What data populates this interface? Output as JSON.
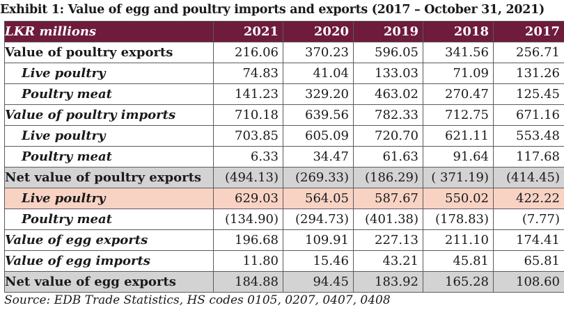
{
  "title": "Exhibit 1: Value of egg and poultry imports and exports (2017 – October 31, 2021)",
  "header": [
    "LKR millions",
    "2021",
    "2020",
    "2019",
    "2018",
    "2017"
  ],
  "rows": [
    {
      "label": "Value of poultry exports",
      "values": [
        "216.06",
        "370.23",
        "596.05",
        "341.56",
        "256.71"
      ]
    },
    {
      "label": "Live poultry",
      "values": [
        "74.83",
        "41.04",
        "133.03",
        "71.09",
        "131.26"
      ]
    },
    {
      "label": "Poultry meat",
      "values": [
        "141.23",
        "329.20",
        "463.02",
        "270.47",
        "125.45"
      ]
    },
    {
      "label": "Value of poultry imports",
      "values": [
        "710.18",
        "639.56",
        "782.33",
        "712.75",
        "671.16"
      ]
    },
    {
      "label": "Live poultry",
      "values": [
        "703.85",
        "605.09",
        "720.70",
        "621.11",
        "553.48"
      ]
    },
    {
      "label": "Poultry meat",
      "values": [
        "6.33",
        "34.47",
        "61.63",
        "91.64",
        "117.68"
      ]
    },
    {
      "label": "Net value of poultry exports",
      "values": [
        "(494.13)",
        "(269.33)",
        "(186.29)",
        "( 371.19)",
        "(414.45)"
      ]
    },
    {
      "label": "Live poultry",
      "values": [
        "629.03",
        "564.05",
        "587.67",
        "550.02",
        "422.22"
      ]
    },
    {
      "label": "Poultry meat",
      "values": [
        "(134.90)",
        "(294.73)",
        "(401.38)",
        "(178.83)",
        "(7.77)"
      ]
    },
    {
      "label": "Value of egg exports",
      "values": [
        "196.68",
        "109.91",
        "227.13",
        "211.10",
        "174.41"
      ]
    },
    {
      "label": "Value of egg imports",
      "values": [
        "11.80",
        "15.46",
        "43.21",
        "45.81",
        "65.81"
      ]
    },
    {
      "label": "Net value of egg exports",
      "values": [
        "184.88",
        "94.45",
        "183.92",
        "165.28",
        "108.60"
      ]
    }
  ],
  "source": "Source: EDB Trade Statistics, HS codes 0105, 0207, 0407, 0408",
  "colors": {
    "header_bg": "#6e1b3c",
    "highlight_gray": "#d3d3d3",
    "highlight_pink": "#f8d3c4"
  }
}
